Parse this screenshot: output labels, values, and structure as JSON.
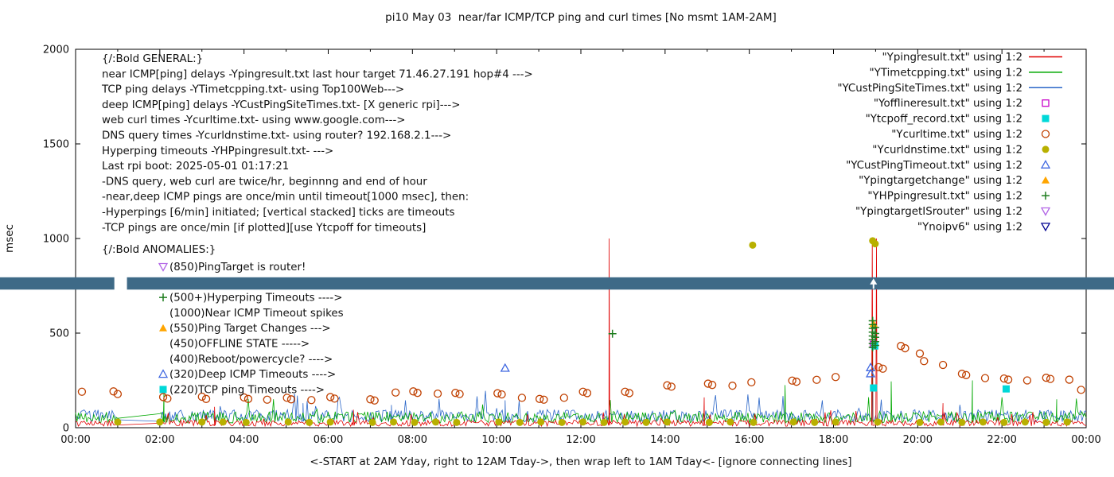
{
  "title": "pi10 May 03  near/far ICMP/TCP ping and curl times [No msmt 1AM-2AM]",
  "xlabel": "<-START at 2AM Yday, right to 12AM Tday->, then wrap left to 1AM Tday<- [ignore connecting lines]",
  "ylabel": "msec",
  "axes": {
    "x_tick_labels": [
      "00:00",
      "02:00",
      "04:00",
      "06:00",
      "08:00",
      "10:00",
      "12:00",
      "14:00",
      "16:00",
      "18:00",
      "20:00",
      "22:00",
      "00:00"
    ],
    "x_tick_hours": [
      0,
      2,
      4,
      6,
      8,
      10,
      12,
      14,
      16,
      18,
      20,
      22,
      24
    ],
    "y_ticks": [
      0,
      500,
      1000,
      1500,
      2000
    ],
    "x_range": [
      0,
      24
    ],
    "y_range": [
      0,
      2000
    ],
    "grid": false
  },
  "legend": [
    {
      "label": "\"Ypingresult.txt\" using 1:2"
    },
    {
      "label": "\"YTimetcpping.txt\" using 1:2"
    },
    {
      "label": "\"YCustPingSiteTimes.txt\" using 1:2"
    },
    {
      "label": "\"Yofflineresult.txt\" using 1:2"
    },
    {
      "label": "\"Ytcpoff_record.txt\" using 1:2"
    },
    {
      "label": "\"Ycurltime.txt\" using 1:2"
    },
    {
      "label": "\"Ycurldnstime.txt\" using 1:2"
    },
    {
      "label": "\"YCustPingTimeout.txt\" using 1:2"
    },
    {
      "label": "\"Ypingtargetchange\" using 1:2"
    },
    {
      "label": "\"YHPpingresult.txt\" using 1:2"
    },
    {
      "label": "\"YpingtargetISrouter\" using 1:2"
    },
    {
      "label": "\"Ynoipv6\" using 1:2"
    }
  ],
  "annotations": {
    "general": [
      "{/:Bold GENERAL:}",
      "near ICMP[ping] delays -Ypingresult.txt last hour target 71.46.27.191 hop#4 --->",
      "TCP ping delays -YTimetcpping.txt- using Top100Web--->",
      "deep ICMP[ping] delays -YCustPingSiteTimes.txt- [X generic rpi]--->",
      "web curl times -Ycurltime.txt- using www.google.com--->",
      "DNS query times -Ycurldnstime.txt- using router? 192.168.2.1--->",
      "Hyperping timeouts -YHPpingresult.txt- --->",
      "Last rpi boot: 2025-05-01 01:17:21",
      "              -DNS query, web curl are twice/hr, beginnng and end of hour",
      "              -near,deep ICMP pings are once/min until timeout[1000 msec], then:",
      "                -Hyperpings [6/min] initiated; [vertical stacked] ticks are timeouts",
      "               -TCP pings are once/min [if plotted][use Ytcpoff for timeouts]"
    ],
    "anomalies_header": "{/:Bold ANOMALIES:}",
    "anomalies": [
      {
        "marker": "triangle-down-open",
        "color": "#b266e6",
        "text": "(850)PingTarget is router!"
      },
      {
        "marker": "",
        "color": "",
        "text": ""
      },
      {
        "marker": "plus",
        "color": "#1e7d1e",
        "text": "(500+)Hyperping Timeouts ---->"
      },
      {
        "marker": "",
        "color": "",
        "text": "(1000)Near ICMP Timeout spikes"
      },
      {
        "marker": "triangle-filled",
        "color": "#ffa500",
        "text": "(550)Ping Target Changes --->"
      },
      {
        "marker": "",
        "color": "",
        "text": "(450)OFFLINE STATE ----->"
      },
      {
        "marker": "",
        "color": "",
        "text": "(400)Reboot/powercycle? ---->"
      },
      {
        "marker": "triangle-open",
        "color": "#4169e1",
        "text": "(320)Deep ICMP Timeouts ---->"
      },
      {
        "marker": "square-filled",
        "color": "#00d8d8",
        "text": "(220)TCP ping Timeouts ---->"
      }
    ]
  },
  "band": {
    "low_msec": 730,
    "high_msec": 795,
    "color": "#3e6a87",
    "gap_hours": [
      0.92,
      1.22
    ],
    "arrow_hour": 18.95
  },
  "chart_data": {
    "type": "line",
    "x_unit": "hours (00:00-24:00 clock)",
    "x_range": [
      0,
      24
    ],
    "y_range": [
      0,
      2000
    ],
    "y_label": "msec",
    "series": [
      {
        "name": "Ypingresult.txt",
        "style": "line",
        "color": "#e00000",
        "baseline": [
          8,
          40
        ],
        "spikes": [
          [
            3.3,
            110
          ],
          [
            6.6,
            95
          ],
          [
            12.67,
            1000
          ],
          [
            14.93,
            160
          ],
          [
            18.92,
            1000
          ],
          [
            19.02,
            1000
          ],
          [
            20.6,
            130
          ]
        ]
      },
      {
        "name": "YTimetcpping.txt",
        "style": "line",
        "color": "#00a800",
        "baseline": [
          25,
          85
        ],
        "spikes": [
          [
            2.1,
            215
          ],
          [
            16.85,
            225
          ],
          [
            18.92,
            575
          ],
          [
            19.37,
            245
          ],
          [
            21.3,
            250
          ],
          [
            23.3,
            150
          ]
        ]
      },
      {
        "name": "YCustPingSiteTimes.txt",
        "style": "line",
        "color": "#2a66c8",
        "baseline": [
          30,
          95
        ],
        "spikes": [
          [
            5.4,
            130
          ],
          [
            7.5,
            120
          ],
          [
            10.2,
            145
          ],
          [
            18.93,
            560
          ]
        ]
      },
      {
        "name": "Yofflineresult.txt",
        "style": "square-open",
        "color": "#c800c8",
        "points": [
          [
            18.95,
            440
          ]
        ]
      },
      {
        "name": "Ytcpoff_record.txt",
        "style": "square-filled",
        "color": "#00d8d8",
        "points": [
          [
            18.95,
            210
          ],
          [
            18.98,
            432
          ],
          [
            22.1,
            205
          ]
        ]
      },
      {
        "name": "Ycurltime.txt",
        "style": "circle-open",
        "color": "#c04000",
        "points": [
          [
            0.15,
            190
          ],
          [
            0.9,
            192
          ],
          [
            1.0,
            178
          ],
          [
            2.08,
            162
          ],
          [
            2.18,
            154
          ],
          [
            3.0,
            164
          ],
          [
            3.1,
            152
          ],
          [
            4.0,
            160
          ],
          [
            4.1,
            152
          ],
          [
            4.55,
            148
          ],
          [
            5.02,
            158
          ],
          [
            5.12,
            150
          ],
          [
            5.6,
            146
          ],
          [
            6.05,
            162
          ],
          [
            6.15,
            154
          ],
          [
            7.0,
            150
          ],
          [
            7.1,
            144
          ],
          [
            7.6,
            186
          ],
          [
            8.02,
            192
          ],
          [
            8.12,
            184
          ],
          [
            8.6,
            180
          ],
          [
            9.02,
            184
          ],
          [
            9.12,
            178
          ],
          [
            10.02,
            182
          ],
          [
            10.12,
            176
          ],
          [
            10.6,
            158
          ],
          [
            11.02,
            152
          ],
          [
            11.12,
            148
          ],
          [
            11.6,
            158
          ],
          [
            12.05,
            190
          ],
          [
            12.15,
            183
          ],
          [
            13.05,
            190
          ],
          [
            13.15,
            183
          ],
          [
            14.05,
            224
          ],
          [
            14.15,
            217
          ],
          [
            15.02,
            233
          ],
          [
            15.12,
            226
          ],
          [
            15.6,
            222
          ],
          [
            16.05,
            240
          ],
          [
            17.02,
            249
          ],
          [
            17.12,
            243
          ],
          [
            17.6,
            253
          ],
          [
            18.05,
            268
          ],
          [
            19.07,
            320
          ],
          [
            19.17,
            312
          ],
          [
            19.6,
            432
          ],
          [
            19.7,
            420
          ],
          [
            20.05,
            392
          ],
          [
            20.15,
            352
          ],
          [
            20.6,
            332
          ],
          [
            21.05,
            285
          ],
          [
            21.15,
            278
          ],
          [
            21.6,
            262
          ],
          [
            22.05,
            260
          ],
          [
            22.15,
            254
          ],
          [
            22.6,
            250
          ],
          [
            23.05,
            264
          ],
          [
            23.15,
            258
          ],
          [
            23.6,
            254
          ],
          [
            23.88,
            200
          ]
        ]
      },
      {
        "name": "Ycurldnstime.txt",
        "style": "circle-filled",
        "color": "#b8b000",
        "points": [
          [
            1,
            30
          ],
          [
            2,
            30
          ],
          [
            3,
            30
          ],
          [
            3.5,
            30
          ],
          [
            4.05,
            28
          ],
          [
            5.05,
            30
          ],
          [
            5.55,
            28
          ],
          [
            6.05,
            30
          ],
          [
            7.05,
            28
          ],
          [
            7.55,
            30
          ],
          [
            8.05,
            28
          ],
          [
            8.55,
            30
          ],
          [
            9.05,
            28
          ],
          [
            10.05,
            30
          ],
          [
            10.55,
            28
          ],
          [
            11.05,
            30
          ],
          [
            11.55,
            28
          ],
          [
            12.05,
            30
          ],
          [
            12.55,
            28
          ],
          [
            13.05,
            30
          ],
          [
            13.55,
            28
          ],
          [
            14.05,
            30
          ],
          [
            15.05,
            28
          ],
          [
            15.55,
            30
          ],
          [
            16.08,
            965
          ],
          [
            16.1,
            28
          ],
          [
            17.05,
            30
          ],
          [
            17.55,
            28
          ],
          [
            18.05,
            30
          ],
          [
            18.93,
            988
          ],
          [
            18.99,
            972
          ],
          [
            19.05,
            30
          ],
          [
            20.05,
            28
          ],
          [
            20.55,
            30
          ],
          [
            21.05,
            28
          ],
          [
            21.55,
            30
          ],
          [
            22.05,
            28
          ],
          [
            22.55,
            30
          ],
          [
            23.05,
            28
          ],
          [
            23.55,
            30
          ]
        ]
      },
      {
        "name": "YCustPingTimeout.txt",
        "style": "triangle-open",
        "color": "#4169e1",
        "points": [
          [
            10.2,
            315
          ],
          [
            18.88,
            318
          ],
          [
            18.88,
            286
          ]
        ]
      },
      {
        "name": "Ypingtargetchange",
        "style": "triangle-filled",
        "color": "#ffa500",
        "points": [
          [
            18.95,
            550
          ]
        ]
      },
      {
        "name": "YHPpingresult.txt",
        "style": "plus",
        "color": "#1e7d1e",
        "points": [
          [
            12.75,
            497
          ],
          [
            18.93,
            425
          ],
          [
            18.93,
            445
          ],
          [
            18.93,
            465
          ],
          [
            18.93,
            485
          ],
          [
            18.93,
            505
          ],
          [
            18.93,
            525
          ],
          [
            18.93,
            545
          ],
          [
            18.93,
            565
          ],
          [
            18.99,
            435
          ],
          [
            18.99,
            455
          ],
          [
            18.99,
            478
          ],
          [
            18.99,
            498
          ],
          [
            18.99,
            530
          ]
        ]
      },
      {
        "name": "YpingtargetISrouter",
        "style": "triangle-down-open",
        "color": "#b266e6",
        "points": []
      },
      {
        "name": "Ynoipv6",
        "style": "triangle-down-open",
        "color": "#000090",
        "points": [],
        "band_msec": [
          730,
          795
        ]
      }
    ]
  }
}
